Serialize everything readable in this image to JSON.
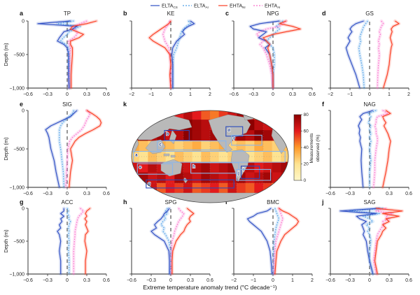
{
  "figure": {
    "x_axis_label": "Extreme temperature anomaly trend (°C decade⁻¹)",
    "y_axis_label": "Depth (m)",
    "depth_tick_labels": [
      "0",
      "−500",
      "−1,000"
    ],
    "legend": [
      {
        "label": "ELTA",
        "sub": "CS",
        "style": "solid",
        "color": "#2f4fc4"
      },
      {
        "label": "ELTA",
        "sub": "AI",
        "style": "dotted",
        "color": "#4f9fe8"
      },
      {
        "label": "EHTA",
        "sub": "NI",
        "style": "solid",
        "color": "#fb3d22"
      },
      {
        "label": "EHTA",
        "sub": "AI",
        "style": "dotted",
        "color": "#fb6fcb"
      }
    ]
  },
  "chart_data": {
    "type": "line",
    "description": "Ten depth-profile panels (a-j) of extreme temperature anomaly trends for ocean regions plus a world map (k) of measurements observed (%)",
    "depths": [
      0,
      -40,
      -80,
      -120,
      -160,
      -200,
      -250,
      -300,
      -350,
      -400,
      -500,
      -650,
      -800,
      -1000
    ],
    "ylabel": "Depth (m)",
    "xlabel": "Extreme temperature anomaly trend (°C decade⁻¹)",
    "panels": [
      {
        "id": "a",
        "title": "TP",
        "xlim": [
          -0.6,
          0.6
        ],
        "xticks": [
          -0.6,
          -0.3,
          0,
          0.3,
          0.6
        ],
        "series": {
          "ELTA_CS": [
            0.05,
            -0.45,
            0.15,
            0.08,
            -0.05,
            -0.08,
            -0.12,
            -0.15,
            -0.05,
            0,
            0.02,
            0.02,
            0.02,
            0.03
          ],
          "ELTA_AI": [
            0.1,
            -0.15,
            0.2,
            0.12,
            0.03,
            0,
            -0.06,
            -0.1,
            -0.02,
            0.02,
            0.03,
            0.03,
            0.03,
            0.03
          ],
          "EHTA_NI": [
            0.45,
            0.3,
            0.08,
            0.05,
            0.15,
            0.25,
            0.18,
            0.05,
            0.05,
            0.08,
            0.08,
            0.07,
            0.06,
            0.06
          ],
          "EHTA_AI": [
            0.3,
            0.2,
            0.1,
            0.1,
            0.15,
            0.15,
            0.1,
            0.02,
            0.03,
            0.05,
            0.04,
            0.04,
            0.03,
            0.03
          ]
        }
      },
      {
        "id": "b",
        "title": "KE",
        "xlim": [
          -2,
          2
        ],
        "xticks": [
          -2,
          -1,
          0,
          1,
          2
        ],
        "series": {
          "ELTA_CS": [
            1.0,
            1.2,
            0.9,
            0.7,
            0.6,
            0.7,
            0.5,
            0.3,
            0.2,
            0.1,
            0.05,
            0.1,
            0.1,
            0.1
          ],
          "ELTA_AI": [
            0.9,
            1.0,
            0.8,
            0.65,
            0.55,
            0.5,
            0.45,
            0.4,
            0.35,
            0.3,
            0.15,
            0.1,
            0.1,
            0.1
          ],
          "EHTA_NI": [
            0,
            -0.1,
            -0.3,
            -0.5,
            -0.7,
            -0.9,
            -1.1,
            -0.9,
            -0.6,
            -0.3,
            -0.05,
            0,
            -0.05,
            0
          ],
          "EHTA_AI": [
            -0.05,
            -0.1,
            -0.2,
            -0.3,
            -0.35,
            -0.4,
            -0.35,
            -0.3,
            -0.2,
            -0.1,
            -0.05,
            0,
            0,
            0
          ]
        }
      },
      {
        "id": "c",
        "title": "NPG",
        "xlim": [
          -0.6,
          0.6
        ],
        "xticks": [
          -0.6,
          -0.3,
          0,
          0.3,
          0.6
        ],
        "series": {
          "ELTA_CS": [
            0.1,
            -0.2,
            -0.35,
            -0.3,
            -0.1,
            -0.15,
            -0.22,
            -0.1,
            -0.05,
            -0.12,
            -0.05,
            -0.02,
            0,
            0
          ],
          "ELTA_AI": [
            0.15,
            0.1,
            0.05,
            0.1,
            0.05,
            0,
            -0.05,
            -0.1,
            -0.05,
            0,
            0.02,
            0.02,
            0,
            0
          ],
          "EHTA_NI": [
            0.2,
            0.1,
            0.3,
            0.42,
            0.2,
            0,
            -0.15,
            -0.1,
            -0.05,
            -0.08,
            -0.05,
            -0.02,
            0,
            0
          ],
          "EHTA_AI": [
            0.2,
            0.15,
            0.1,
            -0.1,
            -0.2,
            -0.25,
            -0.2,
            -0.15,
            -0.2,
            -0.15,
            -0.1,
            -0.05,
            -0.02,
            0
          ]
        }
      },
      {
        "id": "d",
        "title": "GS",
        "xlim": [
          -2,
          2
        ],
        "xticks": [
          -2,
          -1,
          0,
          1,
          2
        ],
        "series": {
          "ELTA_CS": [
            -0.3,
            -0.7,
            -0.9,
            -1.0,
            -0.9,
            -1.0,
            -1.1,
            -1.0,
            -1.1,
            -1.2,
            -1.1,
            -0.9,
            -0.7,
            -0.5
          ],
          "ELTA_AI": [
            -0.1,
            -0.2,
            -0.3,
            -0.35,
            -0.4,
            -0.45,
            -0.5,
            -0.45,
            -0.5,
            -0.55,
            -0.5,
            -0.4,
            -0.32,
            -0.28
          ],
          "EHTA_NI": [
            1.3,
            1.5,
            1.2,
            1.1,
            1.15,
            1.1,
            1.05,
            1.1,
            1.15,
            1.1,
            1.05,
            1.0,
            0.9,
            0.7
          ],
          "EHTA_AI": [
            0.6,
            0.7,
            0.6,
            0.55,
            0.5,
            0.55,
            0.5,
            0.45,
            0.5,
            0.45,
            0.5,
            0.45,
            0.42,
            0.4
          ]
        }
      },
      {
        "id": "e",
        "title": "SIG",
        "xlim": [
          -0.6,
          0.6
        ],
        "xticks": [
          -0.6,
          -0.3,
          0,
          0.3,
          0.6
        ],
        "series": {
          "ELTA_CS": [
            0.15,
            0.1,
            0.05,
            -0.05,
            -0.15,
            -0.25,
            -0.33,
            -0.3,
            -0.28,
            -0.27,
            -0.25,
            -0.2,
            -0.17,
            -0.12
          ],
          "ELTA_AI": [
            0.1,
            0.08,
            0.03,
            -0.02,
            -0.07,
            -0.1,
            -0.12,
            -0.12,
            -0.12,
            -0.12,
            -0.1,
            -0.08,
            -0.06,
            -0.05
          ],
          "EHTA_NI": [
            0.3,
            0.38,
            0.45,
            0.5,
            0.52,
            0.5,
            0.4,
            0.28,
            0.18,
            0.12,
            0.05,
            0.08,
            0.05,
            0.03
          ],
          "EHTA_AI": [
            0.3,
            0.35,
            0.33,
            0.3,
            0.28,
            0.26,
            0.22,
            0.15,
            0.08,
            0.04,
            0.01,
            0,
            -0.01,
            -0.02
          ]
        }
      },
      {
        "id": "f",
        "title": "NAG",
        "xlim": [
          -0.6,
          0.6
        ],
        "xticks": [
          -0.6,
          -0.3,
          0,
          0.3,
          0.6
        ],
        "series": {
          "ELTA_CS": [
            0.05,
            -0.1,
            -0.15,
            -0.12,
            -0.15,
            -0.17,
            -0.15,
            -0.16,
            -0.14,
            -0.15,
            -0.12,
            -0.13,
            -0.12,
            -0.1
          ],
          "ELTA_AI": [
            0.1,
            -0.02,
            0.02,
            0,
            -0.02,
            0.02,
            0,
            0.02,
            0,
            0.02,
            0,
            0.02,
            0,
            0
          ],
          "EHTA_NI": [
            0.25,
            0.32,
            0.2,
            0.22,
            0.25,
            0.22,
            0.25,
            0.28,
            0.3,
            0.32,
            0.3,
            0.28,
            0.25,
            0.2
          ],
          "EHTA_AI": [
            0.2,
            0.28,
            0.12,
            0.1,
            0.1,
            0.08,
            0.1,
            0.1,
            0.12,
            0.12,
            0.1,
            0.08,
            0.08,
            0.06
          ]
        }
      },
      {
        "id": "g",
        "title": "ACC",
        "xlim": [
          -0.6,
          0.6
        ],
        "xticks": [
          -0.6,
          -0.3,
          0,
          0.3,
          0.6
        ],
        "series": {
          "ELTA_CS": [
            -0.05,
            -0.05,
            -0.1,
            -0.05,
            -0.1,
            -0.08,
            -0.12,
            -0.1,
            -0.15,
            -0.12,
            -0.1,
            -0.12,
            -0.1,
            -0.1
          ],
          "ELTA_AI": [
            0,
            0.02,
            0,
            0.03,
            0.02,
            0.05,
            0.03,
            0.02,
            0.03,
            0.02,
            0.03,
            0.02,
            0.03,
            0.03
          ],
          "EHTA_NI": [
            0.35,
            0.3,
            0.28,
            0.3,
            0.27,
            0.3,
            0.28,
            0.3,
            0.32,
            0.28,
            0.27,
            0.3,
            0.28,
            0.28
          ],
          "EHTA_AI": [
            0.2,
            0.25,
            0.22,
            0.18,
            0.16,
            0.15,
            0.14,
            0.13,
            0.12,
            0.12,
            0.11,
            0.1,
            0.1,
            0.1
          ]
        }
      },
      {
        "id": "h",
        "title": "SPG",
        "xlim": [
          -0.6,
          0.6
        ],
        "xticks": [
          -0.6,
          -0.3,
          0,
          0.3,
          0.6
        ],
        "series": {
          "ELTA_CS": [
            -0.02,
            -0.05,
            -0.1,
            -0.12,
            -0.15,
            -0.2,
            -0.25,
            -0.22,
            -0.3,
            -0.25,
            -0.1,
            -0.03,
            -0.02,
            -0.02
          ],
          "ELTA_AI": [
            -0.05,
            -0.08,
            -0.05,
            -0.1,
            -0.08,
            -0.12,
            -0.15,
            -0.1,
            -0.12,
            -0.08,
            -0.03,
            0,
            0,
            -0.01
          ],
          "EHTA_NI": [
            0.25,
            0.3,
            0.35,
            0.3,
            0.28,
            0.3,
            0.25,
            0.22,
            0.2,
            0.15,
            0.08,
            0.03,
            0.02,
            0.02
          ],
          "EHTA_AI": [
            0.12,
            0.15,
            0.2,
            0.18,
            0.15,
            0.12,
            0.1,
            0.08,
            0.06,
            0.05,
            0.02,
            0.01,
            0,
            0
          ]
        }
      },
      {
        "id": "i",
        "title": "BMC",
        "xlim": [
          -2,
          2
        ],
        "xticks": [
          -2,
          -1,
          0,
          1,
          2
        ],
        "series": {
          "ELTA_CS": [
            -0.1,
            -0.3,
            -0.8,
            -1.0,
            -1.3,
            -1.2,
            -1.0,
            -0.8,
            -0.6,
            -0.5,
            -0.3,
            -0.15,
            -0.1,
            -0.05
          ],
          "ELTA_AI": [
            0.1,
            0.15,
            0.2,
            0.25,
            0.3,
            0.25,
            0.2,
            0.15,
            0.12,
            0.1,
            0.05,
            0.03,
            0.02,
            0.02
          ],
          "EHTA_NI": [
            0.3,
            0.5,
            0.8,
            1.0,
            1.2,
            1.3,
            1.2,
            1.0,
            0.8,
            0.6,
            0.4,
            0.2,
            0.15,
            0.1
          ],
          "EHTA_AI": [
            0.3,
            0.35,
            0.4,
            0.45,
            0.5,
            0.45,
            0.4,
            0.35,
            0.3,
            0.25,
            0.15,
            0.1,
            0.05,
            0.05
          ]
        }
      },
      {
        "id": "j",
        "title": "SAG",
        "xlim": [
          -0.6,
          0.6
        ],
        "xticks": [
          -0.6,
          -0.3,
          0,
          0.3,
          0.6
        ],
        "series": {
          "ELTA_CS": [
            0.15,
            -0.45,
            0.1,
            -0.2,
            -0.15,
            -0.05,
            -0.12,
            -0.1,
            -0.08,
            -0.1,
            -0.05,
            -0.03,
            0,
            0.05
          ],
          "ELTA_AI": [
            0.2,
            -0.3,
            0.15,
            -0.1,
            0,
            0.05,
            -0.05,
            0,
            -0.03,
            0,
            0.02,
            0,
            0,
            0.05
          ],
          "EHTA_NI": [
            0.1,
            0.5,
            0.2,
            0.45,
            0.25,
            0.3,
            0.2,
            0.25,
            0.2,
            0.18,
            0.12,
            0.1,
            0.08,
            0.12
          ],
          "EHTA_AI": [
            0.25,
            0.1,
            0.35,
            0.25,
            0.3,
            0.2,
            0.22,
            0.18,
            0.15,
            0.12,
            0.1,
            0.08,
            0.06,
            0.1
          ]
        }
      }
    ],
    "map": {
      "id": "k",
      "type": "heatmap",
      "colorbar": {
        "label_lines": [
          "Measurements",
          "observed (%)"
        ],
        "ticks": [
          0,
          20,
          40,
          60,
          80
        ],
        "stops": [
          [
            0,
            "#fff7c8"
          ],
          [
            20,
            "#fee391"
          ],
          [
            40,
            "#fe9929"
          ],
          [
            60,
            "#e31a1c"
          ],
          [
            80,
            "#8c0000"
          ]
        ]
      },
      "grid_percent": [
        [
          55,
          65,
          45,
          35,
          50,
          60,
          70,
          60,
          50,
          45,
          55,
          65,
          75,
          60,
          45,
          55,
          65,
          50
        ],
        [
          70,
          75,
          65,
          60,
          70,
          75,
          80,
          75,
          70,
          65,
          60,
          70,
          75,
          80,
          70,
          65,
          70,
          75
        ],
        [
          75,
          80,
          70,
          75,
          65,
          70,
          80,
          75,
          70,
          75,
          65,
          70,
          75,
          70,
          80,
          75,
          70,
          65
        ],
        [
          35,
          30,
          25,
          35,
          30,
          25,
          30,
          35,
          25,
          30,
          35,
          25,
          30,
          25,
          35,
          30,
          25,
          30
        ],
        [
          25,
          20,
          30,
          25,
          20,
          30,
          25,
          20,
          30,
          25,
          20,
          25,
          30,
          20,
          25,
          30,
          20,
          25
        ],
        [
          65,
          60,
          70,
          65,
          75,
          70,
          65,
          70,
          75,
          65,
          70,
          75,
          65,
          70,
          60,
          65,
          70,
          75
        ],
        [
          70,
          75,
          65,
          70,
          60,
          75,
          70,
          65,
          75,
          70,
          65,
          70,
          75,
          65,
          70,
          75,
          65,
          70
        ],
        [
          45,
          55,
          65,
          50,
          60,
          55,
          65,
          50,
          55,
          60,
          50,
          65,
          55,
          50,
          60,
          55,
          45,
          50
        ],
        [
          15,
          25,
          10,
          20,
          30,
          15,
          25,
          10,
          20,
          15,
          25,
          10,
          20,
          30,
          15,
          20,
          25,
          15
        ]
      ],
      "region_boxes": [
        {
          "label": "a",
          "x": 0.02,
          "y": 0.445,
          "w": 0.95,
          "h": 0.115,
          "tone": "light"
        },
        {
          "label": "b",
          "x": 0.215,
          "y": 0.225,
          "w": 0.155,
          "h": 0.105,
          "tone": "dark"
        },
        {
          "label": "c",
          "x": 0.17,
          "y": 0.335,
          "w": 0.43,
          "h": 0.095,
          "tone": "light"
        },
        {
          "label": "d",
          "x": 0.6,
          "y": 0.185,
          "w": 0.105,
          "h": 0.1,
          "tone": "dark"
        },
        {
          "label": "f",
          "x": 0.635,
          "y": 0.275,
          "w": 0.19,
          "h": 0.105,
          "tone": "light"
        },
        {
          "label": "e",
          "x": 0.045,
          "y": 0.575,
          "w": 0.22,
          "h": 0.11,
          "tone": "light"
        },
        {
          "label": "h",
          "x": 0.38,
          "y": 0.565,
          "w": 0.3,
          "h": 0.11,
          "tone": "light"
        },
        {
          "label": "i",
          "x": 0.695,
          "y": 0.6,
          "w": 0.115,
          "h": 0.13,
          "tone": "dark"
        },
        {
          "label": "j",
          "x": 0.665,
          "y": 0.635,
          "w": 0.215,
          "h": 0.115,
          "tone": "light"
        },
        {
          "label": "g",
          "x": 0.1,
          "y": 0.745,
          "w": 0.55,
          "h": 0.085,
          "tone": "dark"
        }
      ]
    }
  }
}
